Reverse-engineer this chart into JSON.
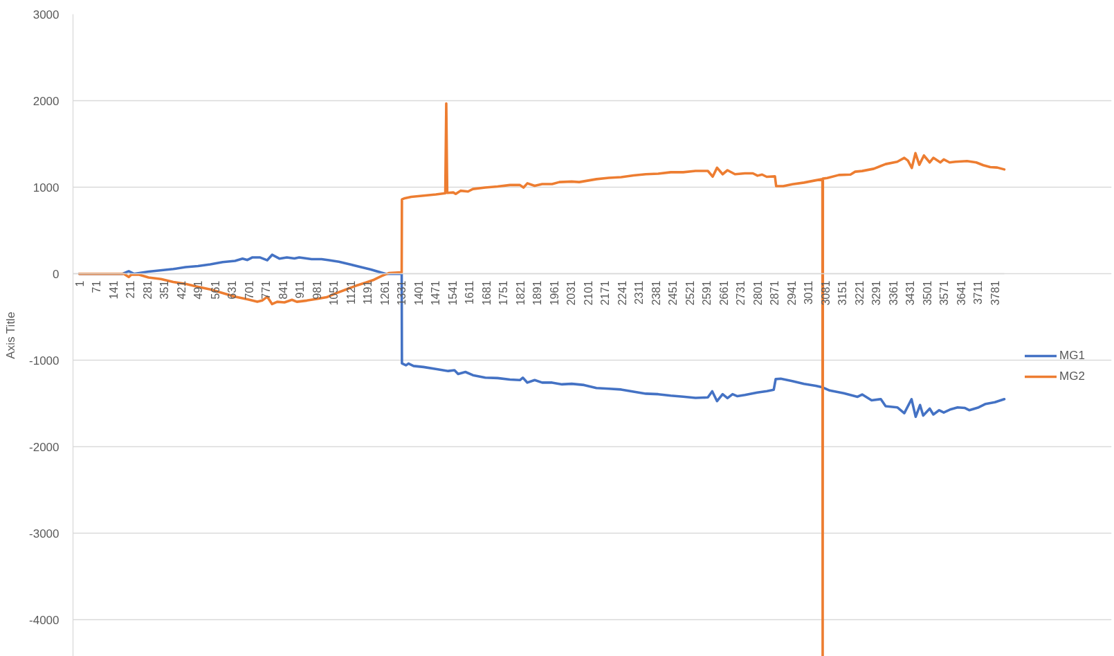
{
  "chart_data": {
    "type": "line",
    "ylabel": "Axis Title",
    "xlim": [
      -25,
      3820
    ],
    "xticks": [
      1,
      71,
      141,
      211,
      281,
      351,
      421,
      491,
      561,
      631,
      701,
      771,
      841,
      911,
      981,
      1051,
      1121,
      1191,
      1261,
      1331,
      1401,
      1471,
      1541,
      1611,
      1681,
      1751,
      1821,
      1891,
      1961,
      2031,
      2101,
      2171,
      2241,
      2311,
      2381,
      2451,
      2521,
      2591,
      2661,
      2731,
      2801,
      2871,
      2941,
      3011,
      3081,
      3151,
      3221,
      3291,
      3361,
      3431,
      3501,
      3571,
      3641,
      3711,
      3781
    ],
    "ylim": [
      -4420,
      3000
    ],
    "yticks": [
      3000,
      2000,
      1000,
      0,
      -1000,
      -2000,
      -3000,
      -4000
    ],
    "grid": "y",
    "legend": "right",
    "line_style": "solid",
    "series": [
      {
        "name": "MG1",
        "color": "#4472c4",
        "x": [
          1,
          180,
          205,
          226,
          287,
          389,
          440,
          491,
          542,
          593,
          644,
          675,
          695,
          716,
          746,
          777,
          797,
          828,
          858,
          889,
          909,
          960,
          1001,
          1032,
          1073,
          1124,
          1164,
          1205,
          1246,
          1266,
          1332,
          1333,
          1350,
          1360,
          1381,
          1422,
          1473,
          1524,
          1550,
          1565,
          1595,
          1626,
          1677,
          1728,
          1779,
          1820,
          1832,
          1851,
          1881,
          1912,
          1953,
          1994,
          2034,
          2085,
          2136,
          2187,
          2238,
          2289,
          2340,
          2391,
          2443,
          2494,
          2545,
          2596,
          2614,
          2634,
          2657,
          2677,
          2698,
          2718,
          2749,
          2800,
          2840,
          2868,
          2876,
          2897,
          2945,
          2993,
          3041,
          3070,
          3099,
          3157,
          3214,
          3233,
          3272,
          3310,
          3330,
          3378,
          3407,
          3437,
          3454,
          3472,
          3485,
          3512,
          3527,
          3551,
          3570,
          3599,
          3627,
          3656,
          3676,
          3714,
          3743,
          3781,
          3820
        ],
        "values": [
          0,
          0,
          30,
          0,
          25,
          55,
          77,
          90,
          110,
          135,
          150,
          175,
          160,
          190,
          190,
          157,
          220,
          175,
          190,
          177,
          190,
          170,
          170,
          157,
          140,
          105,
          77,
          50,
          15,
          0,
          0,
          -1034,
          -1057,
          -1037,
          -1065,
          -1077,
          -1100,
          -1123,
          -1114,
          -1157,
          -1134,
          -1171,
          -1200,
          -1205,
          -1222,
          -1228,
          -1200,
          -1257,
          -1228,
          -1257,
          -1257,
          -1277,
          -1271,
          -1285,
          -1320,
          -1328,
          -1337,
          -1362,
          -1385,
          -1391,
          -1408,
          -1420,
          -1434,
          -1428,
          -1357,
          -1471,
          -1391,
          -1437,
          -1391,
          -1414,
          -1400,
          -1371,
          -1355,
          -1340,
          -1217,
          -1212,
          -1239,
          -1272,
          -1293,
          -1312,
          -1348,
          -1380,
          -1421,
          -1394,
          -1462,
          -1448,
          -1530,
          -1543,
          -1611,
          -1448,
          -1652,
          -1516,
          -1638,
          -1557,
          -1625,
          -1576,
          -1603,
          -1565,
          -1543,
          -1549,
          -1576,
          -1543,
          -1503,
          -1484,
          -1448
        ]
      },
      {
        "name": "MG2",
        "color": "#ed7d31",
        "x": [
          1,
          185,
          205,
          216,
          246,
          287,
          338,
          389,
          440,
          491,
          542,
          593,
          644,
          695,
          736,
          756,
          777,
          797,
          818,
          848,
          879,
          899,
          940,
          981,
          1022,
          1062,
          1103,
          1144,
          1185,
          1218,
          1249,
          1279,
          1332,
          1333,
          1345,
          1371,
          1422,
          1473,
          1512,
          1516,
          1520,
          1545,
          1555,
          1575,
          1606,
          1626,
          1677,
          1728,
          1779,
          1820,
          1835,
          1851,
          1881,
          1912,
          1953,
          1983,
          2034,
          2065,
          2136,
          2187,
          2238,
          2289,
          2340,
          2391,
          2443,
          2494,
          2545,
          2596,
          2616,
          2634,
          2657,
          2677,
          2708,
          2749,
          2782,
          2801,
          2820,
          2839,
          2873,
          2878,
          2907,
          2945,
          2993,
          3041,
          3069,
          3070,
          3071,
          3089,
          3137,
          3185,
          3204,
          3233,
          3281,
          3330,
          3378,
          3407,
          3422,
          3438,
          3453,
          3469,
          3488,
          3512,
          3527,
          3556,
          3570,
          3594,
          3618,
          3666,
          3704,
          3733,
          3762,
          3791,
          3820
        ],
        "values": [
          0,
          0,
          -37,
          -10,
          -8,
          -43,
          -60,
          -95,
          -117,
          -150,
          -180,
          -223,
          -265,
          -295,
          -323,
          -309,
          -265,
          -350,
          -323,
          -330,
          -300,
          -323,
          -309,
          -290,
          -271,
          -223,
          -180,
          -137,
          -100,
          -68,
          -25,
          9,
          17,
          860,
          874,
          889,
          903,
          917,
          931,
          1969,
          935,
          940,
          923,
          960,
          951,
          980,
          997,
          1009,
          1026,
          1026,
          997,
          1046,
          1017,
          1037,
          1037,
          1060,
          1066,
          1060,
          1094,
          1109,
          1117,
          1137,
          1151,
          1157,
          1174,
          1174,
          1189,
          1189,
          1123,
          1226,
          1151,
          1197,
          1151,
          1161,
          1161,
          1134,
          1147,
          1121,
          1126,
          1013,
          1013,
          1035,
          1054,
          1080,
          1094,
          -4420,
          1100,
          1107,
          1142,
          1147,
          1180,
          1188,
          1214,
          1268,
          1295,
          1340,
          1308,
          1223,
          1394,
          1260,
          1367,
          1287,
          1340,
          1287,
          1322,
          1287,
          1295,
          1303,
          1287,
          1255,
          1233,
          1228,
          1206
        ]
      }
    ]
  }
}
